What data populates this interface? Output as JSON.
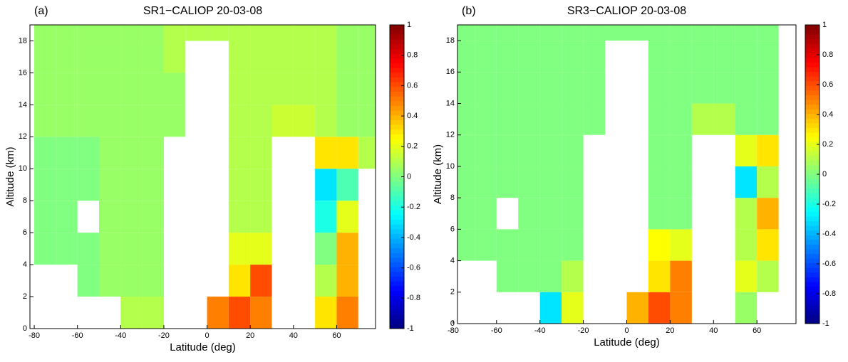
{
  "chart_data": [
    {
      "type": "heatmap",
      "panel_label": "(a)",
      "title": "SR1−CALIOP 20-03-08",
      "x_label": "Latitude (deg)",
      "y_label": "Altitude (km)",
      "xlim": [
        -82,
        78
      ],
      "ylim": [
        0,
        19
      ],
      "xticks": [
        -80,
        -60,
        -40,
        -20,
        0,
        20,
        40,
        60
      ],
      "yticks": [
        0,
        2,
        4,
        6,
        8,
        10,
        12,
        14,
        16,
        18
      ],
      "xbins": [
        -80,
        -70,
        -60,
        -50,
        -40,
        -30,
        -20,
        -10,
        0,
        10,
        20,
        30,
        40,
        50,
        60,
        70,
        78
      ],
      "ybins": [
        0,
        2,
        4,
        6,
        8,
        10,
        12,
        14,
        16,
        18,
        19
      ],
      "values": [
        [
          null,
          null,
          null,
          null,
          0.1,
          0.1,
          null,
          null,
          0.5,
          0.6,
          0.5,
          null,
          null,
          0.3,
          0.5,
          null
        ],
        [
          null,
          null,
          0,
          0.05,
          0.05,
          0.05,
          null,
          null,
          null,
          0.3,
          0.6,
          null,
          null,
          0.1,
          0.4,
          null
        ],
        [
          0,
          0,
          0,
          0.05,
          0.05,
          0.05,
          null,
          null,
          null,
          0.2,
          0.2,
          null,
          null,
          0,
          0.4,
          null
        ],
        [
          0,
          0,
          null,
          0.05,
          0.05,
          0.05,
          null,
          null,
          null,
          0.1,
          0.1,
          null,
          null,
          -0.2,
          0.2,
          null
        ],
        [
          0,
          0,
          0,
          0.05,
          0.05,
          0.05,
          null,
          null,
          null,
          0.1,
          0.1,
          null,
          null,
          -0.3,
          -0.1,
          null
        ],
        [
          0,
          0,
          0,
          0.05,
          0.05,
          0.05,
          null,
          null,
          null,
          0.1,
          0.1,
          null,
          null,
          0.3,
          0.3,
          0.1
        ],
        [
          0.05,
          0.05,
          0.05,
          0.05,
          0.05,
          0.05,
          0.05,
          null,
          null,
          0.1,
          0.1,
          0.15,
          0.15,
          0.1,
          0.05,
          0.05
        ],
        [
          0.05,
          0.05,
          0.05,
          0.05,
          0.05,
          0.05,
          0.05,
          null,
          null,
          0.1,
          0.1,
          0.1,
          0.1,
          0.1,
          0.05,
          0.05
        ],
        [
          0.05,
          0.05,
          0.05,
          0.05,
          0.05,
          0.05,
          0.1,
          null,
          null,
          0.1,
          0.1,
          0.1,
          0.1,
          0.1,
          0.05,
          0.05
        ],
        [
          0.05,
          0.05,
          0.05,
          0.05,
          0.05,
          0.05,
          0.1,
          0.1,
          0.1,
          0.1,
          0.1,
          0.1,
          0.1,
          0.1,
          0.05,
          0.05
        ]
      ],
      "colorbar": {
        "lim": [
          -1,
          1
        ],
        "ticks": [
          1,
          0.8,
          0.6,
          0.4,
          0.2,
          0,
          -0.2,
          -0.4,
          -0.6,
          -0.8,
          -1
        ]
      }
    },
    {
      "type": "heatmap",
      "panel_label": "(b)",
      "title": "SR3−CALIOP 20-03-08",
      "x_label": "Latitude (deg)",
      "y_label": "Altitude (km)",
      "xlim": [
        -78,
        78
      ],
      "ylim": [
        0,
        19
      ],
      "xticks": [
        -80,
        -60,
        -40,
        -20,
        0,
        20,
        40,
        60
      ],
      "yticks": [
        0,
        2,
        4,
        6,
        8,
        10,
        12,
        14,
        16,
        18
      ],
      "xbins": [
        -80,
        -70,
        -60,
        -50,
        -40,
        -30,
        -20,
        -10,
        0,
        10,
        20,
        30,
        40,
        50,
        60,
        70,
        78
      ],
      "ybins": [
        0,
        2,
        4,
        6,
        8,
        10,
        12,
        14,
        16,
        18,
        19
      ],
      "values": [
        [
          null,
          null,
          null,
          null,
          -0.3,
          0.2,
          null,
          null,
          0.4,
          0.6,
          0.5,
          null,
          null,
          0.05,
          null,
          null
        ],
        [
          null,
          null,
          0,
          0,
          0,
          0.1,
          null,
          null,
          null,
          0.3,
          0.5,
          null,
          null,
          0.2,
          0.1,
          null
        ],
        [
          0,
          0,
          0,
          0,
          0,
          0,
          null,
          null,
          null,
          0.25,
          0.2,
          null,
          null,
          0.1,
          0.3,
          null
        ],
        [
          0,
          0,
          null,
          0,
          0,
          0,
          null,
          null,
          null,
          0,
          0,
          null,
          null,
          0.1,
          0.4,
          null
        ],
        [
          0,
          0,
          0,
          0,
          0,
          0,
          null,
          null,
          null,
          0,
          0,
          null,
          null,
          -0.3,
          0.1,
          null
        ],
        [
          0,
          0,
          0,
          0,
          0,
          0,
          null,
          null,
          null,
          0,
          0,
          null,
          null,
          0.2,
          0.3,
          null
        ],
        [
          0,
          0,
          0,
          0,
          0,
          0,
          0,
          null,
          null,
          0,
          0,
          0.1,
          0.1,
          0,
          0,
          null
        ],
        [
          0,
          0,
          0,
          0,
          0,
          0,
          0,
          null,
          null,
          0,
          0,
          0,
          0,
          0,
          0,
          null
        ],
        [
          0,
          0,
          0,
          0,
          0,
          0,
          0,
          null,
          null,
          0,
          0,
          0,
          0,
          0,
          0,
          null
        ],
        [
          0,
          0,
          0,
          0,
          0,
          0,
          0,
          0,
          0,
          0,
          0,
          0,
          0,
          0,
          0,
          null
        ]
      ],
      "colorbar": {
        "lim": [
          -1,
          1
        ],
        "ticks": [
          1,
          0.8,
          0.6,
          0.4,
          0.2,
          0,
          -0.2,
          -0.4,
          -0.6,
          -0.8,
          -1
        ]
      }
    }
  ]
}
